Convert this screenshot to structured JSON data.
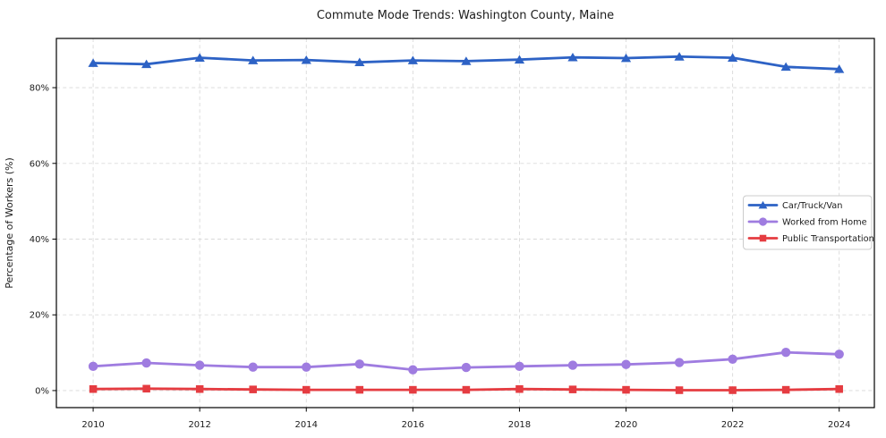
{
  "chart_data": {
    "type": "line",
    "title": "Commute Mode Trends: Washington County, Maine",
    "xlabel": "",
    "ylabel": "Percentage of Workers (%)",
    "x": [
      2010,
      2011,
      2012,
      2013,
      2014,
      2015,
      2016,
      2017,
      2018,
      2019,
      2020,
      2021,
      2022,
      2023,
      2024
    ],
    "x_ticks": [
      2010,
      2012,
      2014,
      2016,
      2018,
      2020,
      2022,
      2024
    ],
    "x_tick_labels": [
      "2010",
      "2012",
      "2014",
      "2016",
      "2018",
      "2020",
      "2022",
      "2024"
    ],
    "y_ticks": [
      0,
      20,
      40,
      60,
      80
    ],
    "y_tick_labels": [
      "0%",
      "20%",
      "40%",
      "60%",
      "80%"
    ],
    "xlim": [
      2009.31,
      2024.66
    ],
    "ylim": [
      -4.5,
      93.0
    ],
    "grid": true,
    "grid_style": "dashed",
    "legend_position": "center-right",
    "series": [
      {
        "name": "Car/Truck/Van",
        "color": "#2d62c5",
        "marker": "triangle",
        "values": [
          86.5,
          86.2,
          87.9,
          87.2,
          87.3,
          86.7,
          87.2,
          87.0,
          87.4,
          88.0,
          87.8,
          88.2,
          87.9,
          85.5,
          84.9
        ]
      },
      {
        "name": "Worked from Home",
        "color": "#9f7ce0",
        "marker": "circle",
        "values": [
          6.4,
          7.3,
          6.7,
          6.2,
          6.2,
          7.0,
          5.5,
          6.1,
          6.4,
          6.7,
          6.9,
          7.4,
          8.3,
          10.1,
          9.6
        ]
      },
      {
        "name": "Public Transportation",
        "color": "#e53c41",
        "marker": "square",
        "values": [
          0.4,
          0.5,
          0.4,
          0.3,
          0.2,
          0.2,
          0.2,
          0.2,
          0.4,
          0.3,
          0.2,
          0.1,
          0.1,
          0.2,
          0.4
        ]
      }
    ],
    "colors": {
      "grid": "#d9d9d9",
      "spine": "#000000",
      "text": "#1c1c1c",
      "legend_border": "#cccccc",
      "legend_bg": "#ffffff"
    }
  }
}
